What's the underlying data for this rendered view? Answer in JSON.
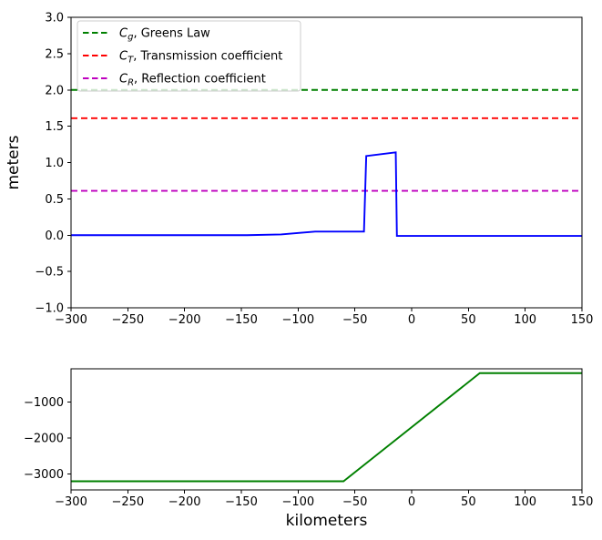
{
  "figure": {
    "background": "#ffffff",
    "axis_color": "#000000",
    "tick_color": "#000000",
    "legend_frame_color": "#cccccc"
  },
  "chart_data": [
    {
      "id": "surface",
      "type": "line",
      "title": "",
      "xlabel": "",
      "ylabel": "meters",
      "xlim": [
        -300,
        150
      ],
      "ylim": [
        -1.0,
        3.0
      ],
      "xticks": [
        -300,
        -250,
        -200,
        -150,
        -100,
        -50,
        0,
        50,
        100,
        150
      ],
      "yticks": [
        -1.0,
        -0.5,
        0.0,
        0.5,
        1.0,
        1.5,
        2.0,
        2.5,
        3.0
      ],
      "grid": false,
      "legend": {
        "position": "upper-left",
        "frame": true,
        "framealpha": 0.8,
        "entries": [
          {
            "var": "C",
            "sub": "g",
            "rest": ", Greens Law",
            "color": "#008000",
            "dashed": true
          },
          {
            "var": "C",
            "sub": "T",
            "rest": ", Transmission coefficient",
            "color": "#ff0000",
            "dashed": true
          },
          {
            "var": "C",
            "sub": "R",
            "rest": ", Reflection coefficient",
            "color": "#bf00bf",
            "dashed": true
          }
        ]
      },
      "series": [
        {
          "name": "greens-law",
          "kind": "hline",
          "y": 2.0,
          "color": "#008000",
          "dashed": true
        },
        {
          "name": "transmission-coefficient",
          "kind": "hline",
          "y": 1.61,
          "color": "#ff0000",
          "dashed": true
        },
        {
          "name": "reflection-coefficient",
          "kind": "hline",
          "y": 0.61,
          "color": "#bf00bf",
          "dashed": true
        },
        {
          "name": "wave-surface",
          "kind": "line",
          "color": "#0000ff",
          "dashed": false,
          "points": [
            [
              -300,
              0.0
            ],
            [
              -145,
              0.0
            ],
            [
              -115,
              0.01
            ],
            [
              -85,
              0.05
            ],
            [
              -42,
              0.05
            ],
            [
              -40,
              1.09
            ],
            [
              -14,
              1.14
            ],
            [
              -13,
              -0.01
            ],
            [
              150,
              -0.01
            ]
          ]
        }
      ]
    },
    {
      "id": "bathymetry",
      "type": "line",
      "title": "",
      "xlabel": "kilometers",
      "ylabel": "",
      "xlim": [
        -300,
        150
      ],
      "ylim": [
        -3440,
        -80
      ],
      "xticks": [
        -300,
        -250,
        -200,
        -150,
        -100,
        -50,
        0,
        50,
        100,
        150
      ],
      "yticks": [
        -3000,
        -2000,
        -1000
      ],
      "grid": false,
      "series": [
        {
          "name": "seafloor",
          "kind": "line",
          "color": "#008000",
          "dashed": false,
          "points": [
            [
              -300,
              -3200
            ],
            [
              -60,
              -3200
            ],
            [
              60,
              -200
            ],
            [
              150,
              -200
            ]
          ]
        }
      ]
    }
  ]
}
